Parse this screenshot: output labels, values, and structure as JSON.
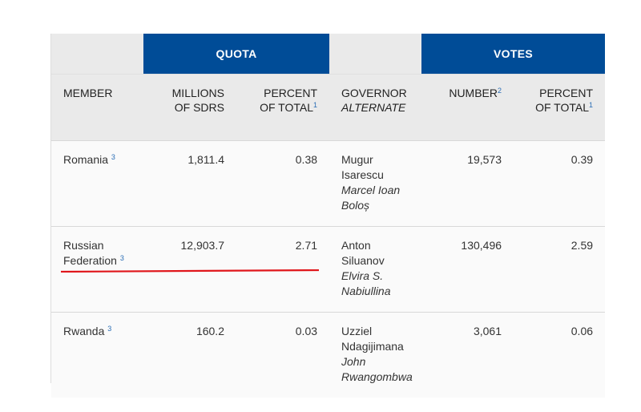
{
  "headers": {
    "quota": "QUOTA",
    "votes": "VOTES",
    "member": "MEMBER",
    "millions_line1": "MILLIONS",
    "millions_line2": "OF SDRS",
    "percent_line1": "PERCENT",
    "percent_line2": "OF TOTAL",
    "percent_sup": "1",
    "governor": "GOVERNOR",
    "alternate": "ALTERNATE",
    "number": "NUMBER",
    "number_sup": "2",
    "votes_percent_line1": "PERCENT",
    "votes_percent_line2": "OF TOTAL",
    "votes_percent_sup": "1"
  },
  "rows": [
    {
      "member": "Romania",
      "member_sup": "3",
      "quota_millions": "1,811.4",
      "quota_percent": "0.38",
      "governor": "Mugur Isarescu",
      "alternate": "Marcel Ioan Boloș",
      "votes_number": "19,573",
      "votes_percent": "0.39"
    },
    {
      "member": "Russian Federation",
      "member_sup": "3",
      "quota_millions": "12,903.7",
      "quota_percent": "2.71",
      "governor": "Anton Siluanov",
      "alternate": "Elvira S. Nabiullina",
      "votes_number": "130,496",
      "votes_percent": "2.59"
    },
    {
      "member": "Rwanda",
      "member_sup": "3",
      "quota_millions": "160.2",
      "quota_percent": "0.03",
      "governor": "Uzziel Ndagijimana",
      "alternate": "John Rwangombwa",
      "votes_number": "3,061",
      "votes_percent": "0.06"
    }
  ],
  "colors": {
    "band": "#004c97",
    "header_bg": "#eaeaea",
    "annotation": "#e0161b"
  }
}
